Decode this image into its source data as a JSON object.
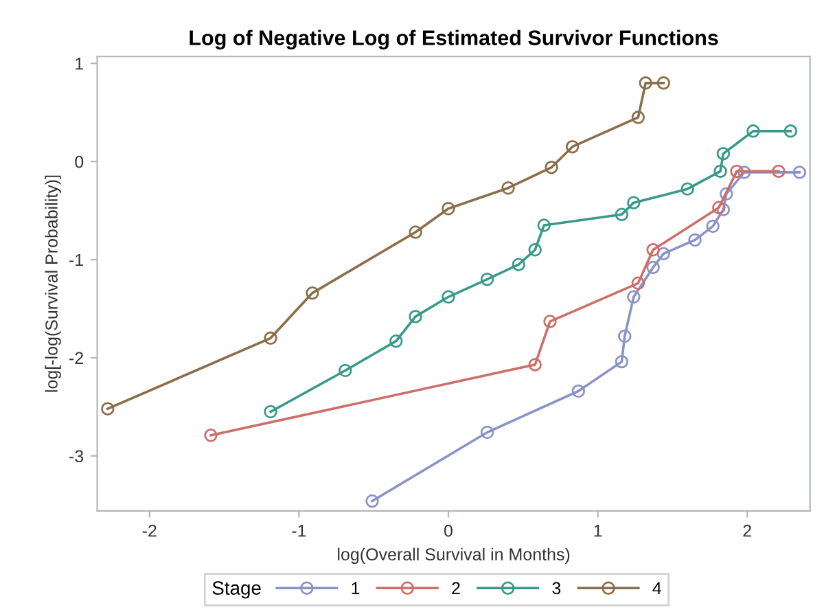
{
  "chart_data": {
    "type": "line",
    "title": "Log of Negative Log of Estimated Survivor Functions",
    "xlabel": "log(Overall Survival in Months)",
    "ylabel": "log[-log(Survival Probability)]",
    "legend_title": "Stage",
    "legend": "bottom",
    "grid": false,
    "marker": "circle",
    "line_style": "solid",
    "xlim": [
      -2.35,
      2.42
    ],
    "xticks": [
      -2,
      -1,
      0,
      1,
      2
    ],
    "ylim": [
      -3.56,
      1.07
    ],
    "yticks": [
      -3,
      -2,
      -1,
      0,
      1
    ],
    "series": [
      {
        "name": "1",
        "color": "#8a93c8",
        "x": [
          -0.51,
          0.26,
          0.87,
          1.16,
          1.18,
          1.24,
          1.37,
          1.44,
          1.65,
          1.77,
          1.84,
          1.86,
          1.98,
          2.35
        ],
        "values": [
          -3.46,
          -2.76,
          -2.34,
          -2.04,
          -1.78,
          -1.38,
          -1.08,
          -0.94,
          -0.8,
          -0.66,
          -0.49,
          -0.33,
          -0.11,
          -0.11
        ]
      },
      {
        "name": "2",
        "color": "#cc6f6a",
        "x": [
          -1.59,
          0.58,
          0.68,
          1.27,
          1.37,
          1.81,
          1.93,
          2.21
        ],
        "values": [
          -2.79,
          -2.07,
          -1.63,
          -1.24,
          -0.9,
          -0.47,
          -0.1,
          -0.1
        ]
      },
      {
        "name": "3",
        "color": "#3a9a8a",
        "x": [
          -1.19,
          -0.69,
          -0.35,
          -0.22,
          0,
          0.26,
          0.47,
          0.58,
          0.64,
          1.16,
          1.24,
          1.6,
          1.82,
          1.84,
          2.04,
          2.29
        ],
        "values": [
          -2.55,
          -2.13,
          -1.83,
          -1.58,
          -1.38,
          -1.2,
          -1.05,
          -0.9,
          -0.65,
          -0.54,
          -0.42,
          -0.28,
          -0.1,
          0.08,
          0.31,
          0.31
        ]
      },
      {
        "name": "4",
        "color": "#8b6e4a",
        "x": [
          -2.28,
          -1.19,
          -0.91,
          -0.22,
          0,
          0.4,
          0.69,
          0.83,
          1.27,
          1.32,
          1.44
        ],
        "values": [
          -2.52,
          -1.8,
          -1.34,
          -0.72,
          -0.48,
          -0.27,
          -0.06,
          0.15,
          0.45,
          0.8,
          0.8
        ]
      }
    ]
  }
}
